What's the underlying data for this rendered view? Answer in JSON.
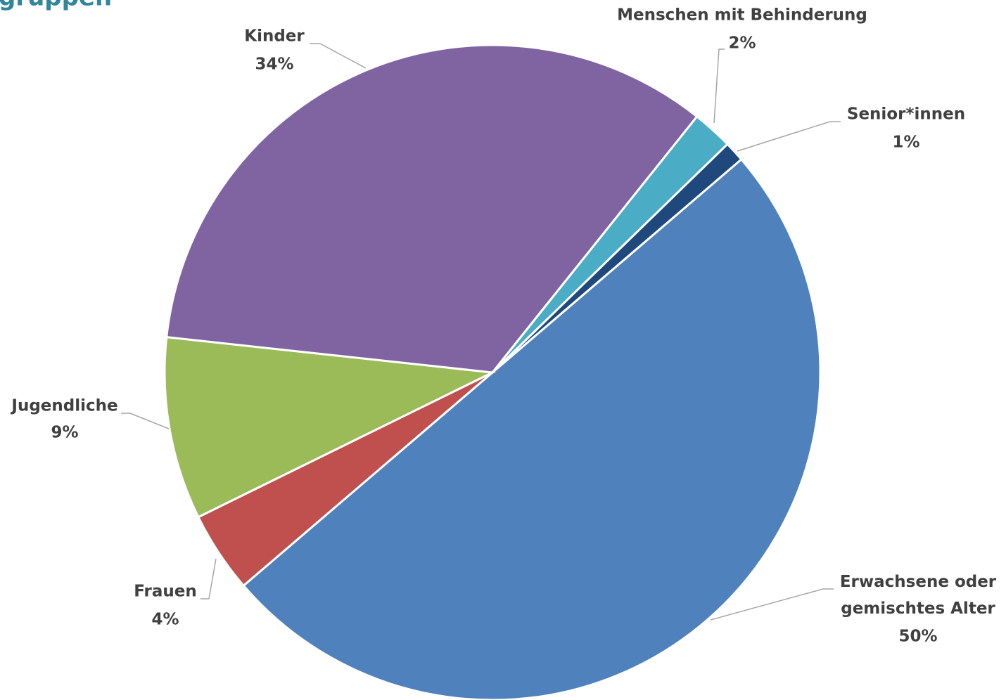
{
  "chart_data": {
    "type": "pie",
    "title": "gruppen",
    "categories": [
      "Erwachsene oder gemischtes Alter",
      "Frauen",
      "Jugendliche",
      "Kinder",
      "Menschen mit Behinderung",
      "Senior*innen"
    ],
    "values": [
      50,
      4,
      9,
      34,
      2,
      1
    ],
    "value_labels": [
      "50%",
      "4%",
      "9%",
      "34%",
      "2%",
      "1%"
    ],
    "colors": [
      "#4f81bd",
      "#c0504d",
      "#9bbb59",
      "#8064a2",
      "#4bacc6",
      "#1f497d"
    ]
  }
}
